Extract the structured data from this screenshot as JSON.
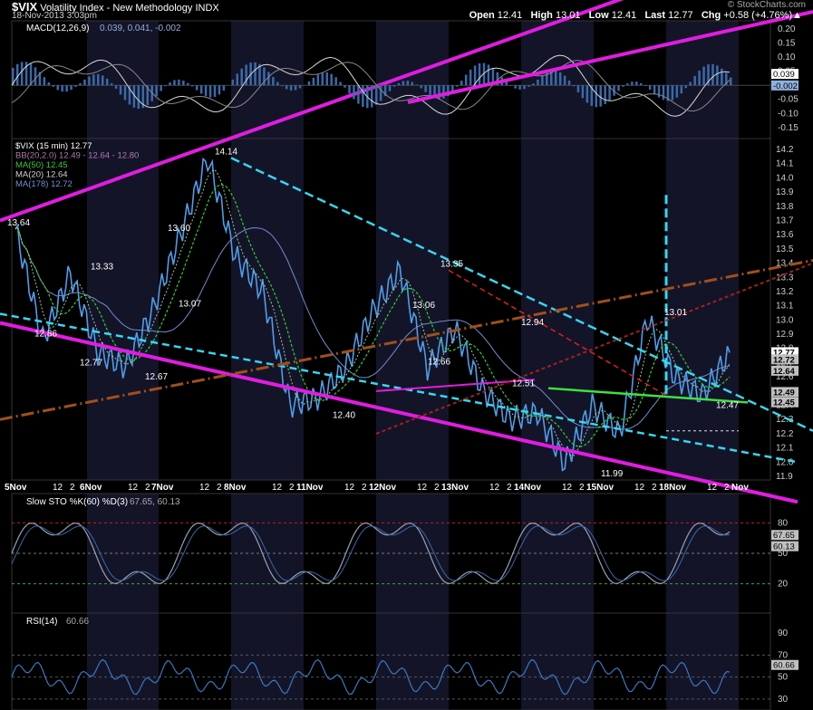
{
  "header": {
    "symbol": "$VIX",
    "name": "Volatility Index - New Methodology",
    "exchange": "INDX",
    "datetime": "18-Nov-2013 3:03pm",
    "brand": "© StockCharts.com",
    "open_label": "Open",
    "open": "12.41",
    "high_label": "High",
    "high": "13.01",
    "low_label": "Low",
    "low": "12.41",
    "last_label": "Last",
    "last": "12.77",
    "chg_label": "Chg",
    "chg": "+0.58 (+4.76%)▲"
  },
  "colors": {
    "background": "#000000",
    "session_band": "#141428",
    "price": "#4f9de8",
    "ma50": "#33cc33",
    "ma20": "#99cc99",
    "ma178": "#6f8fd0",
    "bb": "#5a4a6a",
    "trend_magenta": "#e01de0",
    "trend_cyan": "#37d6f0",
    "macd": "#d8d8d8",
    "sto": "#9aa0b0"
  },
  "macd_panel": {
    "legend": "MACD(12,26,9)",
    "legend_values": "0.039, 0.041, -0.002",
    "y_ticks": [
      "0.20",
      "0.15",
      "0.10",
      "0.05",
      "0.00",
      "-0.05",
      "-0.10",
      "-0.15"
    ],
    "tag_macd": "0.039",
    "tag_hist": "-0.002"
  },
  "price_panel": {
    "legend": [
      {
        "text": "$VIX (15 min) 12.77",
        "color": "#ffffff"
      },
      {
        "text": "BB(20,2.0) 12.49 - 12.64 - 12.80",
        "color": "#b07ab0"
      },
      {
        "text": "MA(50) 12.45",
        "color": "#33cc33"
      },
      {
        "text": "MA(20) 12.64",
        "color": "#cfcfcf"
      },
      {
        "text": "MA(178) 12.72",
        "color": "#6f8fd0"
      }
    ],
    "y_ticks": [
      "14.2",
      "14.1",
      "14.0",
      "13.9",
      "13.8",
      "13.7",
      "13.6",
      "13.5",
      "13.4",
      "13.3",
      "13.2",
      "13.1",
      "13.0",
      "12.9",
      "12.8",
      "12.7",
      "12.6",
      "12.5",
      "12.4",
      "12.3",
      "12.2",
      "12.1",
      "12.0",
      "11.9"
    ],
    "tags": [
      "12.77",
      "12.72",
      "12.64",
      "12.49",
      "12.45"
    ],
    "annotations": [
      "13.64",
      "13.33",
      "14.14",
      "13.60",
      "13.07",
      "12.86",
      "12.77",
      "12.67",
      "12.40",
      "13.35",
      "13.06",
      "12.66",
      "12.94",
      "12.51",
      "11.99",
      "13.01",
      "12.47"
    ]
  },
  "x_axis": {
    "labels": [
      "5Nov",
      "12",
      "2",
      "6Nov",
      "12",
      "2",
      "7Nov",
      "12",
      "2",
      "8Nov",
      "12",
      "2",
      "11Nov",
      "12",
      "2",
      "12Nov",
      "12",
      "2",
      "13Nov",
      "12",
      "2",
      "14Nov",
      "12",
      "2",
      "15Nov",
      "12",
      "2",
      "18Nov",
      "12",
      "2",
      "Nov"
    ]
  },
  "sto_panel": {
    "legend": "Slow STO %K(60) %D(3)",
    "legend_values": "67.65, 60.13",
    "y_ticks": [
      "80",
      "50",
      "20"
    ],
    "tags": [
      "67.65",
      "60.13"
    ]
  },
  "rsi_panel": {
    "legend": "RSI(14)",
    "legend_values": "60.66",
    "y_ticks": [
      "90",
      "70",
      "50",
      "30"
    ],
    "tags": [
      "60.66"
    ]
  },
  "chart_data": {
    "type": "line",
    "title": "$VIX Volatility Index - New Methodology INDX",
    "interval": "15 min",
    "ylim": [
      11.9,
      14.2
    ],
    "x": [
      "5Nov",
      "5Nov",
      "6Nov",
      "6Nov",
      "7Nov",
      "7Nov",
      "8Nov",
      "8Nov",
      "8Nov",
      "11Nov",
      "11Nov",
      "11Nov",
      "12Nov",
      "12Nov",
      "13Nov",
      "13Nov",
      "13Nov",
      "14Nov",
      "14Nov",
      "14Nov",
      "15Nov",
      "15Nov",
      "15Nov",
      "18Nov",
      "18Nov",
      "18Nov",
      "18Nov"
    ],
    "series": [
      {
        "name": "$VIX",
        "values": [
          13.64,
          12.86,
          13.33,
          12.77,
          12.67,
          13.07,
          13.6,
          14.14,
          13.45,
          13.2,
          12.4,
          12.45,
          12.66,
          13.06,
          13.35,
          12.66,
          12.94,
          12.51,
          12.3,
          12.35,
          11.99,
          12.4,
          12.2,
          13.01,
          12.6,
          12.47,
          12.77
        ]
      }
    ],
    "macd": {
      "macd": 0.039,
      "signal": 0.041,
      "histogram": -0.002,
      "ylim": [
        -0.17,
        0.21
      ]
    },
    "stochastic": {
      "k": 67.65,
      "d": 60.13,
      "levels": [
        80,
        50,
        20
      ]
    },
    "rsi": {
      "value": 60.66,
      "levels": [
        70,
        50,
        30
      ]
    },
    "grid": false,
    "legend_position": "top-left"
  }
}
